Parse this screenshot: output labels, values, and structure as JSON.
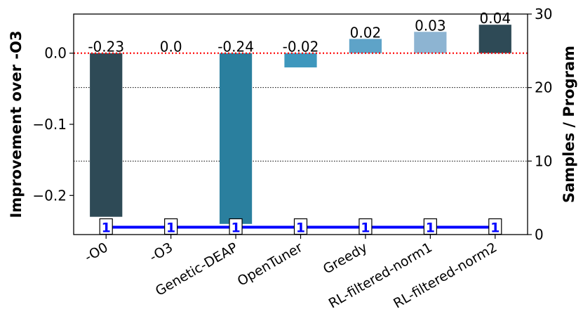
{
  "chart_data": {
    "type": "bar",
    "categories": [
      "-O0",
      "-O3",
      "Genetic-DEAP",
      "OpenTuner",
      "Greedy",
      "RL-filtered-norm1",
      "RL-filtered-norm2"
    ],
    "values": [
      -0.23,
      0.0,
      -0.24,
      -0.02,
      0.02,
      0.03,
      0.04
    ],
    "value_labels": [
      "-0.23",
      "0.0",
      "-0.24",
      "-0.02",
      "0.02",
      "0.03",
      "0.04"
    ],
    "bar_colors": [
      "#2e4a56",
      "#2a7f9e",
      "#2a7f9e",
      "#3e97bd",
      "#5ea3c8",
      "#8db4d2",
      "#2e4a56"
    ],
    "ylabel": "Improvement over -O3",
    "ylim": [
      -0.255,
      0.055
    ],
    "yticks": [
      0.0,
      -0.1,
      -0.2
    ],
    "ytick_labels": [
      "0.0",
      "−0.1",
      "−0.2"
    ],
    "reference_line": {
      "y": 0.0,
      "color": "#ff0000",
      "style": "dotted"
    },
    "secondary_axis": {
      "ylabel": "Samples / Program",
      "ylim": [
        0,
        30
      ],
      "yticks": [
        0,
        10,
        20,
        30
      ],
      "ytick_labels": [
        "0",
        "10",
        "20",
        "30"
      ],
      "gridlines": [
        10,
        20
      ]
    },
    "samples_series": {
      "values": [
        1,
        1,
        1,
        1,
        1,
        1,
        1
      ],
      "labels": [
        "1",
        "1",
        "1",
        "1",
        "1",
        "1",
        "1"
      ],
      "color": "#0000ff"
    }
  }
}
